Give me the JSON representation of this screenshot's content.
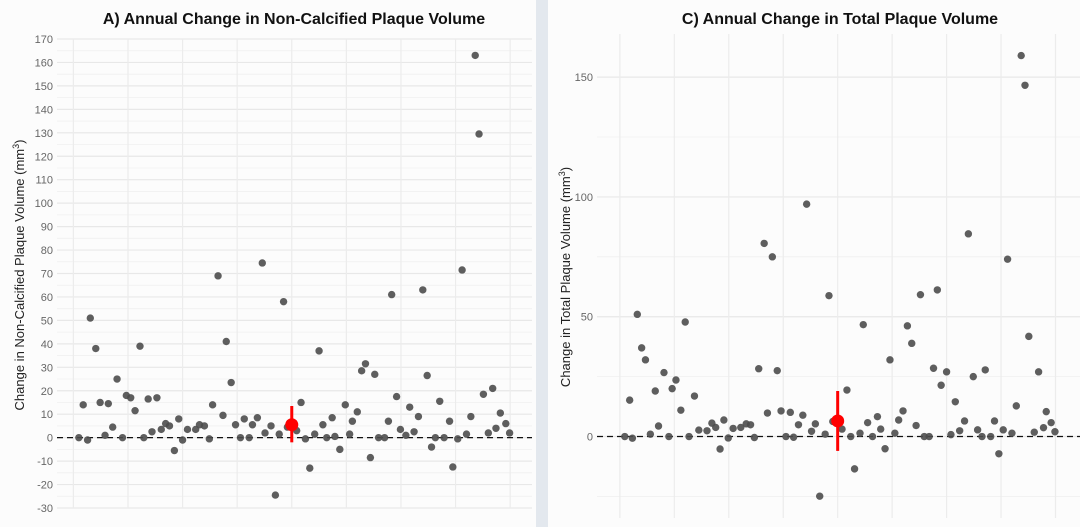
{
  "chart_data": [
    {
      "type": "scatter",
      "title": "A) Annual Change in Non-Calcified Plaque Volume",
      "ylabel": "Change in Non-Calcified Plaque Volume (mm3)",
      "ylabel_main": "Change in Non-Calcified Plaque Volume (mm",
      "ylabel_sup": "3",
      "ylabel_end": ")",
      "xlabel": "",
      "ylim": [
        -30,
        170
      ],
      "xlim": [
        -0.3,
        8.4
      ],
      "yticks": [
        -30,
        -20,
        -10,
        0,
        10,
        20,
        30,
        40,
        50,
        60,
        70,
        80,
        90,
        100,
        110,
        120,
        130,
        140,
        150,
        160,
        170
      ],
      "minor_step": 5,
      "grid": true,
      "reference_line": 0,
      "point_color": "#4d4d4d",
      "summary": {
        "x": 4,
        "mean": 5.5,
        "ci_low": -2,
        "ci_high": 13.5,
        "color": "#ff0000"
      },
      "points": [
        [
          0.1,
          0
        ],
        [
          0.18,
          14
        ],
        [
          0.26,
          -1
        ],
        [
          0.31,
          51
        ],
        [
          0.41,
          38
        ],
        [
          0.49,
          15
        ],
        [
          0.58,
          1
        ],
        [
          0.64,
          14.5
        ],
        [
          0.72,
          4.5
        ],
        [
          0.8,
          25
        ],
        [
          0.9,
          0
        ],
        [
          0.97,
          18
        ],
        [
          1.05,
          17
        ],
        [
          1.13,
          11.5
        ],
        [
          1.22,
          39
        ],
        [
          1.29,
          0
        ],
        [
          1.37,
          16.5
        ],
        [
          1.44,
          2.5
        ],
        [
          1.53,
          17
        ],
        [
          1.61,
          3.5
        ],
        [
          1.69,
          6
        ],
        [
          1.76,
          5
        ],
        [
          1.85,
          -5.5
        ],
        [
          1.93,
          8
        ],
        [
          2.0,
          -1
        ],
        [
          2.09,
          3.5
        ],
        [
          2.24,
          3.5
        ],
        [
          2.31,
          5.5
        ],
        [
          2.4,
          5
        ],
        [
          2.49,
          -0.5
        ],
        [
          2.55,
          14
        ],
        [
          2.65,
          69
        ],
        [
          2.74,
          9.5
        ],
        [
          2.8,
          41
        ],
        [
          2.89,
          23.5
        ],
        [
          2.97,
          5.5
        ],
        [
          3.06,
          0
        ],
        [
          3.13,
          8
        ],
        [
          3.22,
          0
        ],
        [
          3.28,
          5.5
        ],
        [
          3.37,
          8.5
        ],
        [
          3.46,
          74.5
        ],
        [
          3.51,
          2
        ],
        [
          3.62,
          5
        ],
        [
          3.7,
          -24.5
        ],
        [
          3.77,
          1.5
        ],
        [
          3.85,
          58
        ],
        [
          3.92,
          4.5
        ],
        [
          4.09,
          3
        ],
        [
          4.17,
          15
        ],
        [
          4.25,
          -0.5
        ],
        [
          4.33,
          -13
        ],
        [
          4.42,
          1.5
        ],
        [
          4.5,
          37
        ],
        [
          4.57,
          5.5
        ],
        [
          4.64,
          0
        ],
        [
          4.74,
          8.5
        ],
        [
          4.79,
          0.5
        ],
        [
          4.88,
          -5
        ],
        [
          4.98,
          14
        ],
        [
          5.06,
          1.5
        ],
        [
          5.11,
          7
        ],
        [
          5.2,
          11
        ],
        [
          5.28,
          28.5
        ],
        [
          5.35,
          31.5
        ],
        [
          5.44,
          -8.5
        ],
        [
          5.52,
          27
        ],
        [
          5.59,
          0
        ],
        [
          5.7,
          0
        ],
        [
          5.77,
          7
        ],
        [
          5.83,
          61
        ],
        [
          5.92,
          17.5
        ],
        [
          5.99,
          3.5
        ],
        [
          6.09,
          1
        ],
        [
          6.16,
          13
        ],
        [
          6.24,
          2.5
        ],
        [
          6.32,
          9
        ],
        [
          6.4,
          63
        ],
        [
          6.48,
          26.5
        ],
        [
          6.56,
          -4
        ],
        [
          6.63,
          0
        ],
        [
          6.71,
          15.5
        ],
        [
          6.79,
          0
        ],
        [
          6.89,
          7
        ],
        [
          6.95,
          -12.5
        ],
        [
          7.04,
          -0.5
        ],
        [
          7.12,
          71.5
        ],
        [
          7.2,
          1.5
        ],
        [
          7.28,
          9
        ],
        [
          7.36,
          163
        ],
        [
          7.43,
          129.5
        ],
        [
          7.51,
          18.5
        ],
        [
          7.6,
          2
        ],
        [
          7.68,
          21
        ],
        [
          7.74,
          4
        ],
        [
          7.82,
          10.5
        ],
        [
          7.92,
          6
        ],
        [
          7.99,
          2
        ]
      ]
    },
    {
      "type": "scatter",
      "title": "C) Annual Change in Total Plaque Volume",
      "ylabel": "Change in Total Plaque Volume (mm3)",
      "ylabel_main": "Change in Total Plaque Volume (mm",
      "ylabel_sup": "3",
      "ylabel_end": ")",
      "xlabel": "",
      "ylim": [
        -34,
        168
      ],
      "xlim": [
        -0.42,
        8.45
      ],
      "yticks": [
        0,
        50,
        100,
        150
      ],
      "minor_step": 25,
      "grid": true,
      "reference_line": 0,
      "point_color": "#4d4d4d",
      "summary": {
        "x": 4,
        "mean": 6.5,
        "ci_low": -6,
        "ci_high": 19,
        "color": "#ff0000"
      },
      "points": [
        [
          0.09,
          0
        ],
        [
          0.18,
          15.2
        ],
        [
          0.23,
          -0.7
        ],
        [
          0.32,
          51
        ],
        [
          0.4,
          37
        ],
        [
          0.47,
          32
        ],
        [
          0.56,
          1
        ],
        [
          0.65,
          19
        ],
        [
          0.71,
          4.4
        ],
        [
          0.81,
          26.7
        ],
        [
          0.9,
          0
        ],
        [
          0.96,
          20
        ],
        [
          1.03,
          23.6
        ],
        [
          1.12,
          11
        ],
        [
          1.2,
          47.8
        ],
        [
          1.27,
          0
        ],
        [
          1.37,
          16.9
        ],
        [
          1.45,
          2.7
        ],
        [
          1.6,
          2.4
        ],
        [
          1.69,
          5.6
        ],
        [
          1.76,
          3.8
        ],
        [
          1.84,
          -5.2
        ],
        [
          1.91,
          6.9
        ],
        [
          1.99,
          -0.6
        ],
        [
          2.08,
          3.4
        ],
        [
          2.22,
          3.8
        ],
        [
          2.32,
          5.3
        ],
        [
          2.4,
          4.9
        ],
        [
          2.47,
          -0.4
        ],
        [
          2.55,
          28.3
        ],
        [
          2.65,
          80.6
        ],
        [
          2.71,
          9.8
        ],
        [
          2.8,
          75
        ],
        [
          2.89,
          27.5
        ],
        [
          2.96,
          10.7
        ],
        [
          3.05,
          0
        ],
        [
          3.13,
          10.1
        ],
        [
          3.19,
          -0.3
        ],
        [
          3.28,
          4.9
        ],
        [
          3.36,
          8.9
        ],
        [
          3.43,
          97
        ],
        [
          3.52,
          2.2
        ],
        [
          3.59,
          5.3
        ],
        [
          3.67,
          -24.9
        ],
        [
          3.77,
          1
        ],
        [
          3.84,
          58.8
        ],
        [
          3.91,
          6.3
        ],
        [
          4.08,
          3.1
        ],
        [
          4.17,
          19.4
        ],
        [
          4.24,
          0
        ],
        [
          4.31,
          -13.5
        ],
        [
          4.41,
          1.4
        ],
        [
          4.47,
          46.7
        ],
        [
          4.55,
          5.8
        ],
        [
          4.64,
          0
        ],
        [
          4.73,
          8.3
        ],
        [
          4.79,
          3.1
        ],
        [
          4.87,
          -5.1
        ],
        [
          4.96,
          32
        ],
        [
          5.05,
          1.4
        ],
        [
          5.12,
          6.9
        ],
        [
          5.2,
          10.7
        ],
        [
          5.28,
          46.2
        ],
        [
          5.36,
          38.9
        ],
        [
          5.44,
          4.6
        ],
        [
          5.52,
          59.2
        ],
        [
          5.59,
          0
        ],
        [
          5.68,
          0
        ],
        [
          5.76,
          28.5
        ],
        [
          5.83,
          61.2
        ],
        [
          5.9,
          21.4
        ],
        [
          6.0,
          27
        ],
        [
          6.08,
          0.8
        ],
        [
          6.16,
          14.5
        ],
        [
          6.24,
          2.4
        ],
        [
          6.33,
          6.5
        ],
        [
          6.4,
          84.6
        ],
        [
          6.49,
          25
        ],
        [
          6.57,
          2.8
        ],
        [
          6.65,
          0
        ],
        [
          6.71,
          27.8
        ],
        [
          6.81,
          0
        ],
        [
          6.88,
          6.5
        ],
        [
          6.96,
          -7.2
        ],
        [
          7.04,
          2.8
        ],
        [
          7.12,
          74
        ],
        [
          7.2,
          1.4
        ],
        [
          7.28,
          12.8
        ],
        [
          7.37,
          159
        ],
        [
          7.44,
          146.6
        ],
        [
          7.51,
          41.8
        ],
        [
          7.61,
          1.8
        ],
        [
          7.69,
          27
        ],
        [
          7.78,
          3.7
        ],
        [
          7.83,
          10.4
        ],
        [
          7.92,
          5.8
        ],
        [
          7.99,
          2
        ]
      ]
    }
  ]
}
